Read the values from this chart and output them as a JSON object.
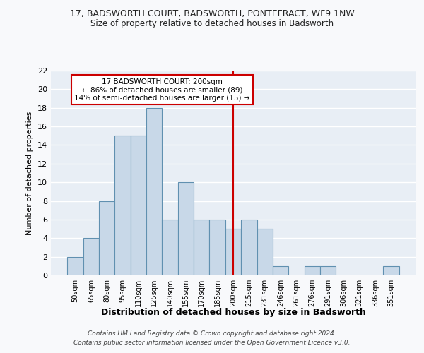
{
  "title": "17, BADSWORTH COURT, BADSWORTH, PONTEFRACT, WF9 1NW",
  "subtitle": "Size of property relative to detached houses in Badsworth",
  "xlabel": "Distribution of detached houses by size in Badsworth",
  "ylabel": "Number of detached properties",
  "categories": [
    "50sqm",
    "65sqm",
    "80sqm",
    "95sqm",
    "110sqm",
    "125sqm",
    "140sqm",
    "155sqm",
    "170sqm",
    "185sqm",
    "200sqm",
    "215sqm",
    "231sqm",
    "246sqm",
    "261sqm",
    "276sqm",
    "291sqm",
    "306sqm",
    "321sqm",
    "336sqm",
    "351sqm"
  ],
  "values": [
    2,
    4,
    8,
    15,
    15,
    18,
    6,
    10,
    6,
    6,
    5,
    6,
    5,
    1,
    0,
    1,
    1,
    0,
    0,
    0,
    1
  ],
  "bar_color": "#c8d8e8",
  "bar_edge_color": "#6090b0",
  "highlight_index": 10,
  "annotation_text": "17 BADSWORTH COURT: 200sqm\n← 86% of detached houses are smaller (89)\n14% of semi-detached houses are larger (15) →",
  "annotation_box_color": "#ffffff",
  "annotation_box_edge": "#cc0000",
  "vline_color": "#cc0000",
  "fig_bg_color": "#f8f9fb",
  "ax_bg_color": "#e8eef5",
  "grid_color": "#ffffff",
  "ylim": [
    0,
    22
  ],
  "yticks": [
    0,
    2,
    4,
    6,
    8,
    10,
    12,
    14,
    16,
    18,
    20,
    22
  ],
  "footer_line1": "Contains HM Land Registry data © Crown copyright and database right 2024.",
  "footer_line2": "Contains public sector information licensed under the Open Government Licence v3.0."
}
